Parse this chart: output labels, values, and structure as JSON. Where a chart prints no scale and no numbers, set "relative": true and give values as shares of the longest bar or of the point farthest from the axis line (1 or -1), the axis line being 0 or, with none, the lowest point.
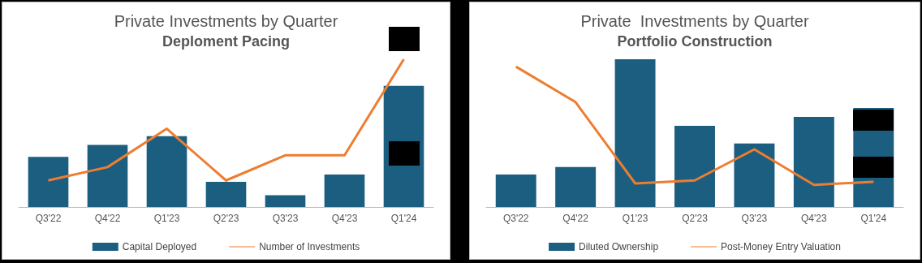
{
  "chart_data": [
    {
      "type": "bar",
      "title": "Private Investments by Quarter",
      "subtitle": "Deploment Pacing",
      "categories": [
        "Q3'22",
        "Q4'22",
        "Q1'23",
        "Q2'23",
        "Q3'23",
        "Q4'23",
        "Q1'24"
      ],
      "relative": true,
      "legend": "bottom",
      "series": [
        {
          "name": "Capital Deployed",
          "color": "#1b5e80",
          "values": [
            0.34,
            0.42,
            0.48,
            0.17,
            0.08,
            0.22,
            0.82
          ]
        },
        {
          "name": "Number of Investments",
          "type": "line",
          "color": "#ed7d31",
          "values": [
            0.18,
            0.27,
            0.53,
            0.18,
            0.35,
            0.35,
            1
          ]
        }
      ]
    },
    {
      "type": "bar",
      "title": "Private  Investments by Quarter",
      "subtitle": "Portfolio Construction",
      "categories": [
        "Q3'22",
        "Q4'22",
        "Q1'23",
        "Q2'23",
        "Q3'23",
        "Q4'23",
        "Q1'24"
      ],
      "relative": true,
      "legend": "bottom",
      "series": [
        {
          "name": "Diluted Ownership",
          "color": "#1b5e80",
          "values": [
            0.22,
            0.27,
            1,
            0.55,
            0.43,
            0.61,
            0.67
          ]
        },
        {
          "name": "Post-Money Entry Valuation",
          "type": "line",
          "color": "#ed7d31",
          "values": [
            0.95,
            0.71,
            0.16,
            0.18,
            0.39,
            0.15,
            0.17
          ]
        }
      ]
    }
  ]
}
